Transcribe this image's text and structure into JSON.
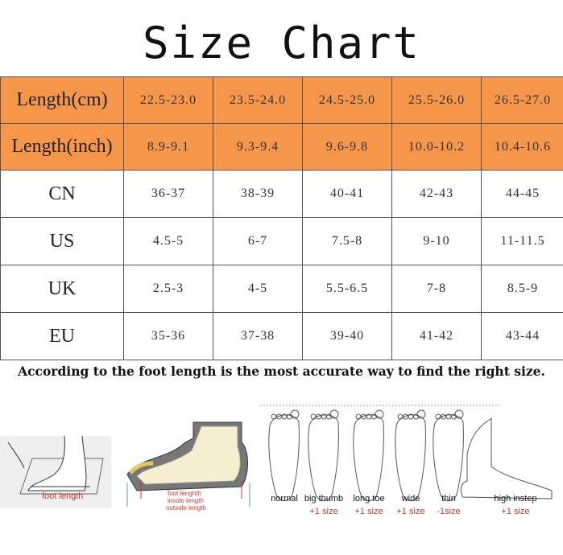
{
  "title": "Size Chart",
  "table": {
    "rows": [
      {
        "label": "Length(cm)",
        "style": "orange",
        "values": [
          "22.5-23.0",
          "23.5-24.0",
          "24.5-25.0",
          "25.5-26.0",
          "26.5-27.0"
        ]
      },
      {
        "label": "Length(inch)",
        "style": "orange",
        "values": [
          "8.9-9.1",
          "9.3-9.4",
          "9.6-9.8",
          "10.0-10.2",
          "10.4-10.6"
        ]
      },
      {
        "label": "CN",
        "style": "white",
        "values": [
          "36-37",
          "38-39",
          "40-41",
          "42-43",
          "44-45"
        ]
      },
      {
        "label": "US",
        "style": "white",
        "values": [
          "4.5-5",
          "6-7",
          "7.5-8",
          "9-10",
          "11-11.5"
        ]
      },
      {
        "label": "UK",
        "style": "white",
        "values": [
          "2.5-3",
          "4-5",
          "5.5-6.5",
          "7-8",
          "8.5-9"
        ]
      },
      {
        "label": "EU",
        "style": "white",
        "values": [
          "35-36",
          "37-38",
          "39-40",
          "41-42",
          "43-44"
        ]
      }
    ]
  },
  "note": "According to the foot length is the most  accurate way to find the right size.",
  "illustrations": {
    "foot_length_label": "foot length",
    "shoe_labels": [
      "foot lenghth",
      "insole length",
      "outsole length"
    ],
    "foot_types": [
      {
        "name": "normal",
        "adjust": ""
      },
      {
        "name": "big thumb",
        "adjust": "+1 size"
      },
      {
        "name": "long toe",
        "adjust": "+1 size"
      },
      {
        "name": "wide",
        "adjust": "+1 size"
      },
      {
        "name": "thin",
        "adjust": "-1size"
      },
      {
        "name": "high instep",
        "adjust": "+1 size"
      }
    ]
  },
  "colors": {
    "header_orange": "#F5964A",
    "accent_red": "#c0392b"
  }
}
